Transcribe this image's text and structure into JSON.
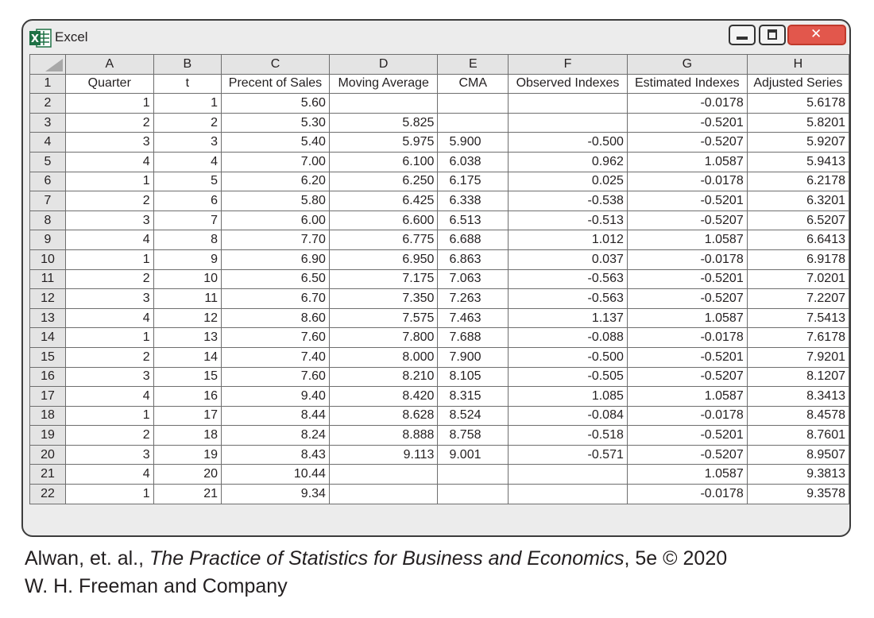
{
  "window": {
    "title": "Excel",
    "app_icon_letter": "X",
    "close_symbol": "✕"
  },
  "sheet": {
    "columns": [
      "A",
      "B",
      "C",
      "D",
      "E",
      "F",
      "G",
      "H"
    ],
    "header_row_number": "1",
    "headers": [
      "Quarter",
      "t",
      "Precent of Sales",
      "Moving Average",
      "CMA",
      "Observed Indexes",
      "Estimated Indexes",
      "Adjusted Series"
    ],
    "rows": [
      [
        "2",
        "1",
        "1",
        "5.60",
        "",
        "",
        "",
        "-0.0178",
        "5.6178"
      ],
      [
        "3",
        "2",
        "2",
        "5.30",
        "5.825",
        "",
        "",
        "-0.5201",
        "5.8201"
      ],
      [
        "4",
        "3",
        "3",
        "5.40",
        "5.975",
        "5.900",
        "-0.500",
        "-0.5207",
        "5.9207"
      ],
      [
        "5",
        "4",
        "4",
        "7.00",
        "6.100",
        "6.038",
        "0.962",
        "1.0587",
        "5.9413"
      ],
      [
        "6",
        "1",
        "5",
        "6.20",
        "6.250",
        "6.175",
        "0.025",
        "-0.0178",
        "6.2178"
      ],
      [
        "7",
        "2",
        "6",
        "5.80",
        "6.425",
        "6.338",
        "-0.538",
        "-0.5201",
        "6.3201"
      ],
      [
        "8",
        "3",
        "7",
        "6.00",
        "6.600",
        "6.513",
        "-0.513",
        "-0.5207",
        "6.5207"
      ],
      [
        "9",
        "4",
        "8",
        "7.70",
        "6.775",
        "6.688",
        "1.012",
        "1.0587",
        "6.6413"
      ],
      [
        "10",
        "1",
        "9",
        "6.90",
        "6.950",
        "6.863",
        "0.037",
        "-0.0178",
        "6.9178"
      ],
      [
        "11",
        "2",
        "10",
        "6.50",
        "7.175",
        "7.063",
        "-0.563",
        "-0.5201",
        "7.0201"
      ],
      [
        "12",
        "3",
        "11",
        "6.70",
        "7.350",
        "7.263",
        "-0.563",
        "-0.5207",
        "7.2207"
      ],
      [
        "13",
        "4",
        "12",
        "8.60",
        "7.575",
        "7.463",
        "1.137",
        "1.0587",
        "7.5413"
      ],
      [
        "14",
        "1",
        "13",
        "7.60",
        "7.800",
        "7.688",
        "-0.088",
        "-0.0178",
        "7.6178"
      ],
      [
        "15",
        "2",
        "14",
        "7.40",
        "8.000",
        "7.900",
        "-0.500",
        "-0.5201",
        "7.9201"
      ],
      [
        "16",
        "3",
        "15",
        "7.60",
        "8.210",
        "8.105",
        "-0.505",
        "-0.5207",
        "8.1207"
      ],
      [
        "17",
        "4",
        "16",
        "9.40",
        "8.420",
        "8.315",
        "1.085",
        "1.0587",
        "8.3413"
      ],
      [
        "18",
        "1",
        "17",
        "8.44",
        "8.628",
        "8.524",
        "-0.084",
        "-0.0178",
        "8.4578"
      ],
      [
        "19",
        "2",
        "18",
        "8.24",
        "8.888",
        "8.758",
        "-0.518",
        "-0.5201",
        "8.7601"
      ],
      [
        "20",
        "3",
        "19",
        "8.43",
        "9.113",
        "9.001",
        "-0.571",
        "-0.5207",
        "8.9507"
      ],
      [
        "21",
        "4",
        "20",
        "10.44",
        "",
        "",
        "",
        "1.0587",
        "9.3813"
      ],
      [
        "22",
        "1",
        "21",
        "9.34",
        "",
        "",
        "",
        "-0.0178",
        "9.3578"
      ]
    ]
  },
  "caption": {
    "line1_prefix": "Alwan, et. al., ",
    "line1_title": "The Practice of Statistics for Business and Economics",
    "line1_suffix": ", 5e © 2020",
    "line2": "W. H. Freeman and Company"
  },
  "colors": {
    "close_button": "#e2574c",
    "header_fill": "#e4e4e4",
    "excel_green": "#1e7145"
  }
}
